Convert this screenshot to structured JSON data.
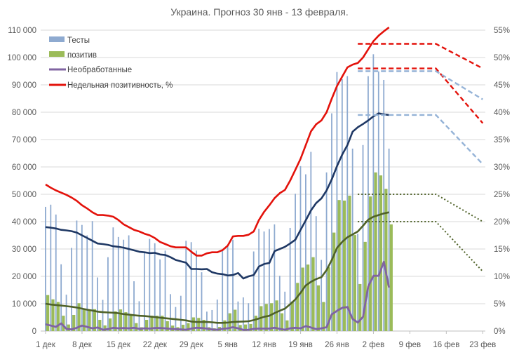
{
  "chart_data": {
    "type": "bar+line",
    "title": "Украина. Прогноз 30 янв - 13 февраля.",
    "xlabel": "",
    "ylabel": "",
    "ylim": [
      0,
      110000
    ],
    "y2lim": [
      0,
      55
    ],
    "grid": true,
    "legend_placement": "top-left",
    "x_tick_labels": [
      "1 дек",
      "8 дек",
      "15 дек",
      "22 дек",
      "29 дек",
      "5 янв",
      "12 янв",
      "19 янв",
      "26 янв",
      "2 фев",
      "9 фев",
      "16 фев",
      "23 фев"
    ],
    "y_tick_labels": [
      "0",
      "10 000",
      "20 000",
      "30 000",
      "40 000",
      "50 000",
      "60 000",
      "70 000",
      "80 000",
      "90 000",
      "100 000",
      "110 000"
    ],
    "y2_tick_labels": [
      "0%",
      "5%",
      "10%",
      "15%",
      "20%",
      "25%",
      "30%",
      "35%",
      "40%",
      "45%",
      "50%",
      "55%"
    ],
    "dates": [
      "01.12",
      "02.12",
      "03.12",
      "04.12",
      "05.12",
      "06.12",
      "07.12",
      "08.12",
      "09.12",
      "10.12",
      "11.12",
      "12.12",
      "13.12",
      "14.12",
      "15.12",
      "16.12",
      "17.12",
      "18.12",
      "19.12",
      "20.12",
      "21.12",
      "22.12",
      "23.12",
      "24.12",
      "25.12",
      "26.12",
      "27.12",
      "28.12",
      "29.12",
      "30.12",
      "31.12",
      "01.01",
      "02.01",
      "03.01",
      "04.01",
      "05.01",
      "06.01",
      "07.01",
      "08.01",
      "09.01",
      "10.01",
      "11.01",
      "12.01",
      "13.01",
      "14.01",
      "15.01",
      "16.01",
      "17.01",
      "18.01",
      "19.01",
      "20.01",
      "21.01",
      "22.01",
      "23.01",
      "24.01",
      "25.01",
      "26.01",
      "27.01",
      "28.01",
      "29.01",
      "30.01",
      "31.01",
      "01.02",
      "02.02",
      "03.02",
      "04.02",
      "05.02"
    ],
    "series": [
      {
        "name": "Тесты",
        "type": "bar",
        "axis": "left",
        "color": "#8eaad0",
        "values": [
          45400,
          46200,
          42600,
          24400,
          13300,
          30400,
          40400,
          38800,
          35000,
          40200,
          19600,
          11400,
          27000,
          37900,
          34400,
          33400,
          35000,
          18200,
          10900,
          28700,
          33700,
          32100,
          26200,
          29400,
          13500,
          8800,
          12900,
          33000,
          32500,
          29400,
          21500,
          7100,
          7700,
          11500,
          29400,
          31300,
          33400,
          10800,
          12300,
          10200,
          29100,
          37400,
          36400,
          37300,
          39000,
          20200,
          14400,
          37700,
          50200,
          60300,
          57300,
          65500,
          42000,
          26000,
          58000,
          79600,
          94700,
          92100,
          93200,
          66700,
          35600,
          68000,
          93200,
          101200,
          94900,
          91800,
          66700
        ]
      },
      {
        "name": "позитив",
        "type": "bar",
        "axis": "left",
        "color": "#9bbb59",
        "values": [
          13150,
          11600,
          10600,
          5600,
          2400,
          5900,
          10200,
          7800,
          7900,
          8000,
          4100,
          2050,
          4600,
          7200,
          7900,
          6900,
          6100,
          2900,
          1400,
          4100,
          5600,
          5600,
          5600,
          3600,
          2000,
          1400,
          2300,
          2900,
          5000,
          4800,
          4100,
          1400,
          1000,
          1500,
          3900,
          6500,
          7800,
          2200,
          2400,
          2600,
          5600,
          9100,
          9900,
          10200,
          11200,
          6500,
          3900,
          10800,
          17600,
          23200,
          24300,
          27000,
          16700,
          10600,
          23300,
          36000,
          47900,
          47700,
          49500,
          35100,
          17200,
          32600,
          49200,
          58000,
          56900,
          52000,
          39000
        ]
      },
      {
        "name": "",
        "type": "line",
        "axis": "left",
        "color": "#1f3864",
        "values": [
          38000,
          37800,
          37500,
          37000,
          36800,
          36500,
          36000,
          35000,
          34000,
          33000,
          32000,
          31800,
          31500,
          31000,
          30800,
          30500,
          30000,
          29500,
          29000,
          28800,
          28500,
          28600,
          28000,
          27800,
          27000,
          26000,
          25500,
          25000,
          22700,
          22700,
          22600,
          22700,
          21500,
          21000,
          20800,
          20300,
          20500,
          21200,
          19200,
          20000,
          20500,
          23600,
          24500,
          24900,
          29200,
          30000,
          30800,
          32000,
          33400,
          37000,
          40500,
          44100,
          46800,
          48500,
          51400,
          55500,
          60300,
          64500,
          68000,
          72900,
          74500,
          75700,
          77000,
          78500,
          79600,
          79200,
          79000
        ]
      },
      {
        "name": "",
        "type": "line",
        "axis": "left",
        "color": "#4f6228",
        "values": [
          10000,
          9700,
          9500,
          9300,
          9100,
          8900,
          8600,
          8200,
          7800,
          7500,
          7100,
          6900,
          6800,
          6700,
          6500,
          6200,
          6000,
          5800,
          5600,
          5500,
          5300,
          5100,
          4900,
          4700,
          4500,
          4300,
          4100,
          3900,
          3500,
          3300,
          3300,
          3300,
          3200,
          3000,
          3000,
          3100,
          3300,
          3400,
          3500,
          3600,
          4000,
          4600,
          5200,
          5600,
          6600,
          7400,
          8200,
          9800,
          11600,
          14000,
          16700,
          18000,
          19000,
          19700,
          22300,
          26000,
          30400,
          32600,
          34300,
          35300,
          36400,
          38500,
          40700,
          41800,
          42400,
          43000,
          43400
        ]
      },
      {
        "name": "Необработанные",
        "type": "line",
        "axis": "left",
        "color": "#8064a2",
        "values": [
          2500,
          2000,
          1500,
          2800,
          800,
          600,
          1200,
          2000,
          1500,
          1000,
          1300,
          500,
          700,
          1200,
          1000,
          1100,
          1000,
          1200,
          800,
          1000,
          900,
          1100,
          1100,
          1000,
          800,
          700,
          600,
          500,
          900,
          1200,
          1100,
          900,
          600,
          500,
          800,
          1000,
          1400,
          1000,
          400,
          500,
          800,
          900,
          900,
          900,
          1200,
          800,
          500,
          1000,
          1200,
          1000,
          1800,
          1300,
          700,
          1000,
          1400,
          6100,
          7400,
          8500,
          8800,
          4400,
          3100,
          5200,
          16300,
          20200,
          20200,
          25300,
          15900
        ]
      },
      {
        "name": "Недельная позитивность, %",
        "type": "line",
        "axis": "right",
        "color": "#e3120b",
        "values": [
          26.8,
          26.2,
          25.7,
          25.3,
          24.9,
          24.4,
          23.8,
          23,
          22.4,
          21.7,
          21.2,
          21.2,
          21.1,
          20.9,
          20.3,
          19.5,
          19,
          18.5,
          18.2,
          17.8,
          17.5,
          17,
          16.3,
          15.9,
          15.5,
          15.3,
          15.3,
          15.3,
          14.5,
          13.8,
          13.8,
          14.2,
          14.4,
          14.4,
          14.8,
          15.6,
          17.3,
          17.4,
          17.4,
          17.6,
          18.2,
          20.3,
          21.8,
          23,
          24.3,
          25.2,
          25.8,
          27.5,
          29.5,
          31.5,
          34,
          36.5,
          37.8,
          38.5,
          40,
          42.5,
          44.8,
          46.5,
          48.2,
          48.7,
          49,
          50,
          51.5,
          53,
          54,
          54.8,
          55.5
        ]
      }
    ],
    "forecasts": [
      {
        "axis": "right",
        "color": "#e3120b",
        "style": "dashed",
        "dates": [
          "30.01",
          "14.02",
          "23.02"
        ],
        "values": [
          52.5,
          52.5,
          48
        ]
      },
      {
        "axis": "right",
        "color": "#e3120b",
        "style": "dashed",
        "dates": [
          "30.01",
          "14.02",
          "23.02"
        ],
        "values": [
          48,
          48,
          38
        ]
      },
      {
        "axis": "left",
        "color": "#95b3d7",
        "style": "dashed",
        "dates": [
          "30.01",
          "14.02",
          "23.02"
        ],
        "values": [
          95000,
          95000,
          84700
        ]
      },
      {
        "axis": "left",
        "color": "#95b3d7",
        "style": "dashed",
        "dates": [
          "30.01",
          "14.02",
          "23.02"
        ],
        "values": [
          79000,
          79000,
          61000
        ]
      },
      {
        "axis": "left",
        "color": "#4f6228",
        "style": "dotted",
        "dates": [
          "30.01",
          "14.02",
          "23.02"
        ],
        "values": [
          50000,
          50000,
          40000
        ]
      },
      {
        "axis": "left",
        "color": "#4f6228",
        "style": "dotted",
        "dates": [
          "30.01",
          "14.02",
          "23.02"
        ],
        "values": [
          40000,
          40000,
          21800
        ]
      }
    ]
  }
}
